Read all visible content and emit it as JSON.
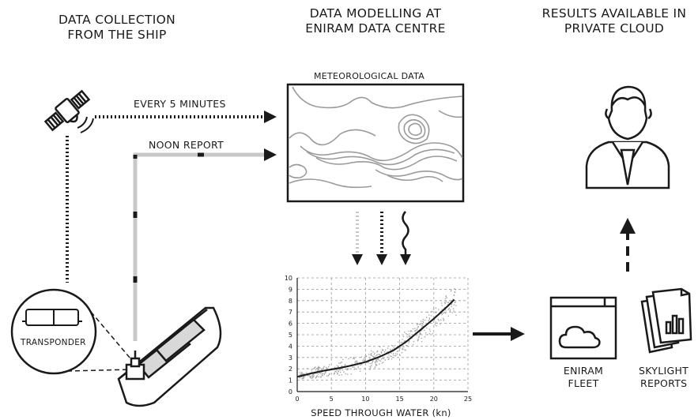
{
  "stages": [
    {
      "line1": "DATA COLLECTION",
      "line2": "FROM THE SHIP"
    },
    {
      "line1": "DATA MODELLING AT",
      "line2": "ENIRAM DATA CENTRE"
    },
    {
      "line1": "RESULTS AVAILABLE IN",
      "line2": "PRIVATE CLOUD"
    }
  ],
  "flows": {
    "every5": "EVERY 5 MINUTES",
    "noon": "NOON REPORT",
    "transponder": "TRANSPONDER"
  },
  "met": {
    "title": "METEOROLOGICAL DATA"
  },
  "outputs": {
    "fleet_line1": "ENIRAM",
    "fleet_line2": "FLEET",
    "skylight_line1": "SKYLIGHT",
    "skylight_line2": "REPORTS"
  },
  "colors": {
    "ink": "#1a1a1a",
    "grey": "#c8c8c8",
    "mid": "#9a9a9a"
  },
  "chart_data": {
    "type": "scatter",
    "xlabel": "SPEED THROUGH WATER (kn)",
    "ylabel": "",
    "xlim": [
      0,
      25
    ],
    "ylim": [
      0,
      10
    ],
    "xticks": [
      "0",
      "5",
      "10",
      "15",
      "20",
      "25"
    ],
    "yticks": [
      "0",
      "1",
      "2",
      "3",
      "4",
      "5",
      "6",
      "7",
      "8",
      "9",
      "10"
    ],
    "grid": true,
    "curve": [
      [
        0.0,
        1.3
      ],
      [
        2.0,
        1.6
      ],
      [
        4.0,
        1.85
      ],
      [
        6.0,
        2.05
      ],
      [
        8.0,
        2.3
      ],
      [
        10.0,
        2.6
      ],
      [
        12.0,
        3.05
      ],
      [
        14.0,
        3.6
      ],
      [
        16.0,
        4.4
      ],
      [
        18.0,
        5.4
      ],
      [
        20.0,
        6.4
      ],
      [
        22.0,
        7.5
      ],
      [
        23.0,
        8.1
      ]
    ]
  }
}
